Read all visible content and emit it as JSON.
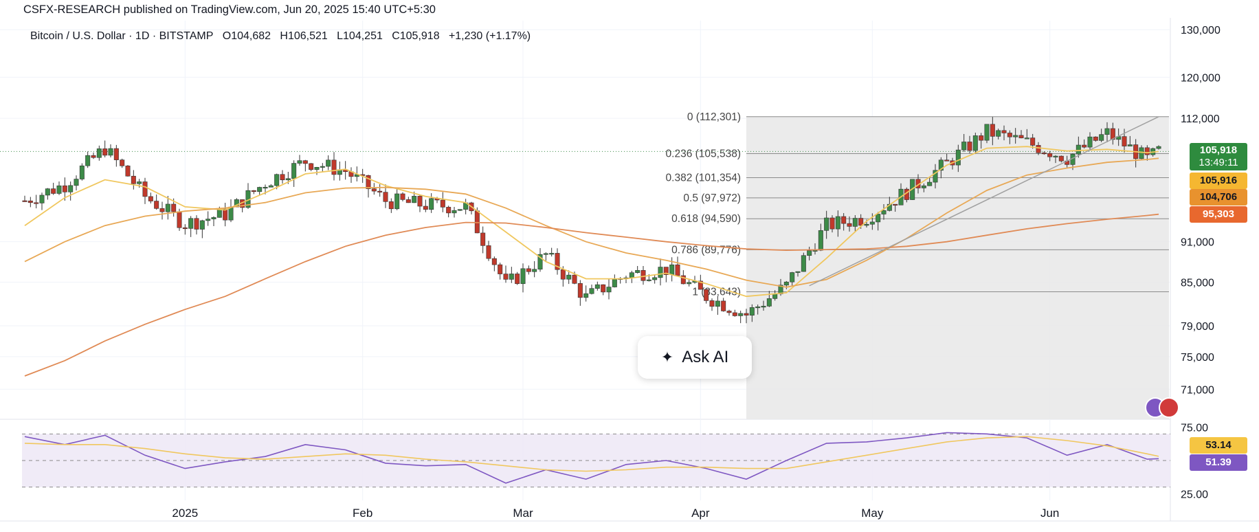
{
  "header": {
    "published": "CSFX-RESEARCH published on TradingView.com, Jun 20, 2025 15:40 UTC+5:30"
  },
  "legend": {
    "symbol": "Bitcoin / U.S. Dollar · 1D · BITSTAMP",
    "open": "O104,682",
    "high": "H106,521",
    "low": "L104,251",
    "close": "C105,918",
    "change": "+1,230 (+1.17%)"
  },
  "badges": {
    "price": "105,918",
    "countdown": "13:49:11",
    "ma_short": "105,916",
    "ma_mid": "104,706",
    "ma_long": "95,303",
    "rsi_ma": "53.14",
    "rsi": "51.39"
  },
  "ask_ai": {
    "label": "Ask AI"
  },
  "colors": {
    "up": "#3d8b48",
    "down": "#c0392b",
    "ma_short": "#f0c75e",
    "ma_mid": "#e8a855",
    "ma_long": "#e08a55",
    "rsi": "#7e57c2",
    "rsi_ma": "#f0c75e",
    "fib_zone": "#e8e8e8",
    "badge_price": "#2e8b3e",
    "badge_ma_short": "#f5b731",
    "badge_ma_mid": "#e8922e",
    "badge_ma_long": "#e8682e",
    "badge_rsi_ma": "#f5c542",
    "badge_rsi": "#7e57c2"
  },
  "chart_data": {
    "type": "candlestick",
    "title": "Bitcoin / U.S. Dollar · 1D · BITSTAMP",
    "y_axis": {
      "ticks": [
        130000,
        120000,
        112000,
        105918,
        91000,
        85000,
        79000,
        75000,
        71000
      ],
      "tick_labels": [
        "130,000",
        "120,000",
        "112,000",
        "105,918",
        "91,000",
        "85,000",
        "79,000",
        "75,000",
        "71,000"
      ],
      "ylim": [
        67500,
        132000
      ],
      "scale": "log"
    },
    "x_axis": {
      "start": "2024-12-04",
      "end": "2025-06-20",
      "tick_labels": [
        "2025",
        "Feb",
        "Mar",
        "Apr",
        "May",
        "Jun"
      ],
      "tick_dates": [
        "2025-01-01",
        "2025-02-01",
        "2025-03-01",
        "2025-04-01",
        "2025-05-01",
        "2025-06-01"
      ]
    },
    "fibonacci": {
      "from_date": "2025-04-09",
      "to_date": "2025-06-20",
      "levels": [
        {
          "ratio": "0",
          "price": 112301,
          "label": "0 (112,301)"
        },
        {
          "ratio": "0.236",
          "price": 105538,
          "label": "0.236 (105,538)"
        },
        {
          "ratio": "0.382",
          "price": 101354,
          "label": "0.382 (101,354)"
        },
        {
          "ratio": "0.5",
          "price": 97972,
          "label": "0.5 (97,972)"
        },
        {
          "ratio": "0.618",
          "price": 94590,
          "label": "0.618 (94,590)"
        },
        {
          "ratio": "0.786",
          "price": 89776,
          "label": "0.786 (89,776)"
        },
        {
          "ratio": "1",
          "price": 83643,
          "label": "1 (83,643)"
        }
      ]
    },
    "trendline": {
      "from": [
        "2025-04-20",
        84500
      ],
      "to": [
        "2025-06-20",
        112300
      ]
    },
    "close_series": {
      "dates": [
        "2024-12-04",
        "2024-12-11",
        "2024-12-18",
        "2024-12-25",
        "2025-01-01",
        "2025-01-08",
        "2025-01-15",
        "2025-01-22",
        "2025-01-29",
        "2025-02-05",
        "2025-02-12",
        "2025-02-19",
        "2025-02-26",
        "2025-03-05",
        "2025-03-12",
        "2025-03-19",
        "2025-03-26",
        "2025-04-02",
        "2025-04-09",
        "2025-04-16",
        "2025-04-23",
        "2025-04-30",
        "2025-05-07",
        "2025-05-14",
        "2025-05-21",
        "2025-05-28",
        "2025-06-04",
        "2025-06-11",
        "2025-06-18",
        "2025-06-20"
      ],
      "values": [
        97500,
        100200,
        106500,
        98200,
        93800,
        95300,
        100500,
        104200,
        102500,
        97500,
        96800,
        96500,
        84500,
        89000,
        82800,
        86100,
        86900,
        83000,
        80500,
        84500,
        93500,
        94800,
        99000,
        103800,
        109500,
        107500,
        104800,
        109200,
        104500,
        105918
      ]
    },
    "moving_averages": [
      {
        "name": "MA short",
        "last": 105916,
        "values": [
          93500,
          98000,
          101000,
          99800,
          96500,
          96000,
          98800,
          102000,
          102800,
          100000,
          98200,
          97200,
          92500,
          88000,
          85500,
          85500,
          86300,
          84800,
          83000,
          83500,
          88500,
          94200,
          98800,
          103500,
          106500,
          106800,
          106000,
          106300,
          105700,
          105916
        ]
      },
      {
        "name": "MA mid",
        "last": 104706,
        "values": [
          88000,
          91000,
          93500,
          95000,
          95800,
          96300,
          97200,
          98800,
          99600,
          99700,
          99400,
          98600,
          96300,
          93500,
          91000,
          89300,
          88200,
          86900,
          85300,
          84300,
          85400,
          88200,
          91500,
          95500,
          99200,
          101800,
          103000,
          104000,
          104500,
          104706
        ]
      },
      {
        "name": "MA long",
        "last": 95303,
        "values": [
          72600,
          74500,
          77000,
          79200,
          81200,
          83000,
          85500,
          88000,
          90300,
          92000,
          93200,
          94000,
          93900,
          93200,
          92400,
          91700,
          91000,
          90400,
          89900,
          89700,
          89800,
          89900,
          90300,
          91000,
          92000,
          93000,
          93800,
          94500,
          95100,
          95303
        ]
      }
    ],
    "rsi": {
      "ticks": [
        75,
        25
      ],
      "tick_labels": [
        "75.00",
        "25.00"
      ],
      "bands": [
        70,
        50,
        30
      ],
      "ylim": [
        20,
        80
      ],
      "last": 51.39,
      "ma_last": 53.14,
      "values": [
        68,
        62,
        69,
        54,
        44,
        49,
        53,
        62,
        58,
        48,
        46,
        47,
        33,
        43,
        36,
        47,
        50,
        44,
        36,
        50,
        63,
        64,
        67,
        71,
        70,
        67,
        54,
        62,
        51,
        51.39
      ],
      "ma_values": [
        63,
        62,
        62,
        59,
        55,
        52,
        51,
        53,
        55,
        54,
        51,
        49,
        46,
        43,
        42,
        43,
        45,
        45,
        44,
        44,
        49,
        54,
        59,
        64,
        67,
        68,
        65,
        61,
        55,
        53.14
      ]
    }
  }
}
